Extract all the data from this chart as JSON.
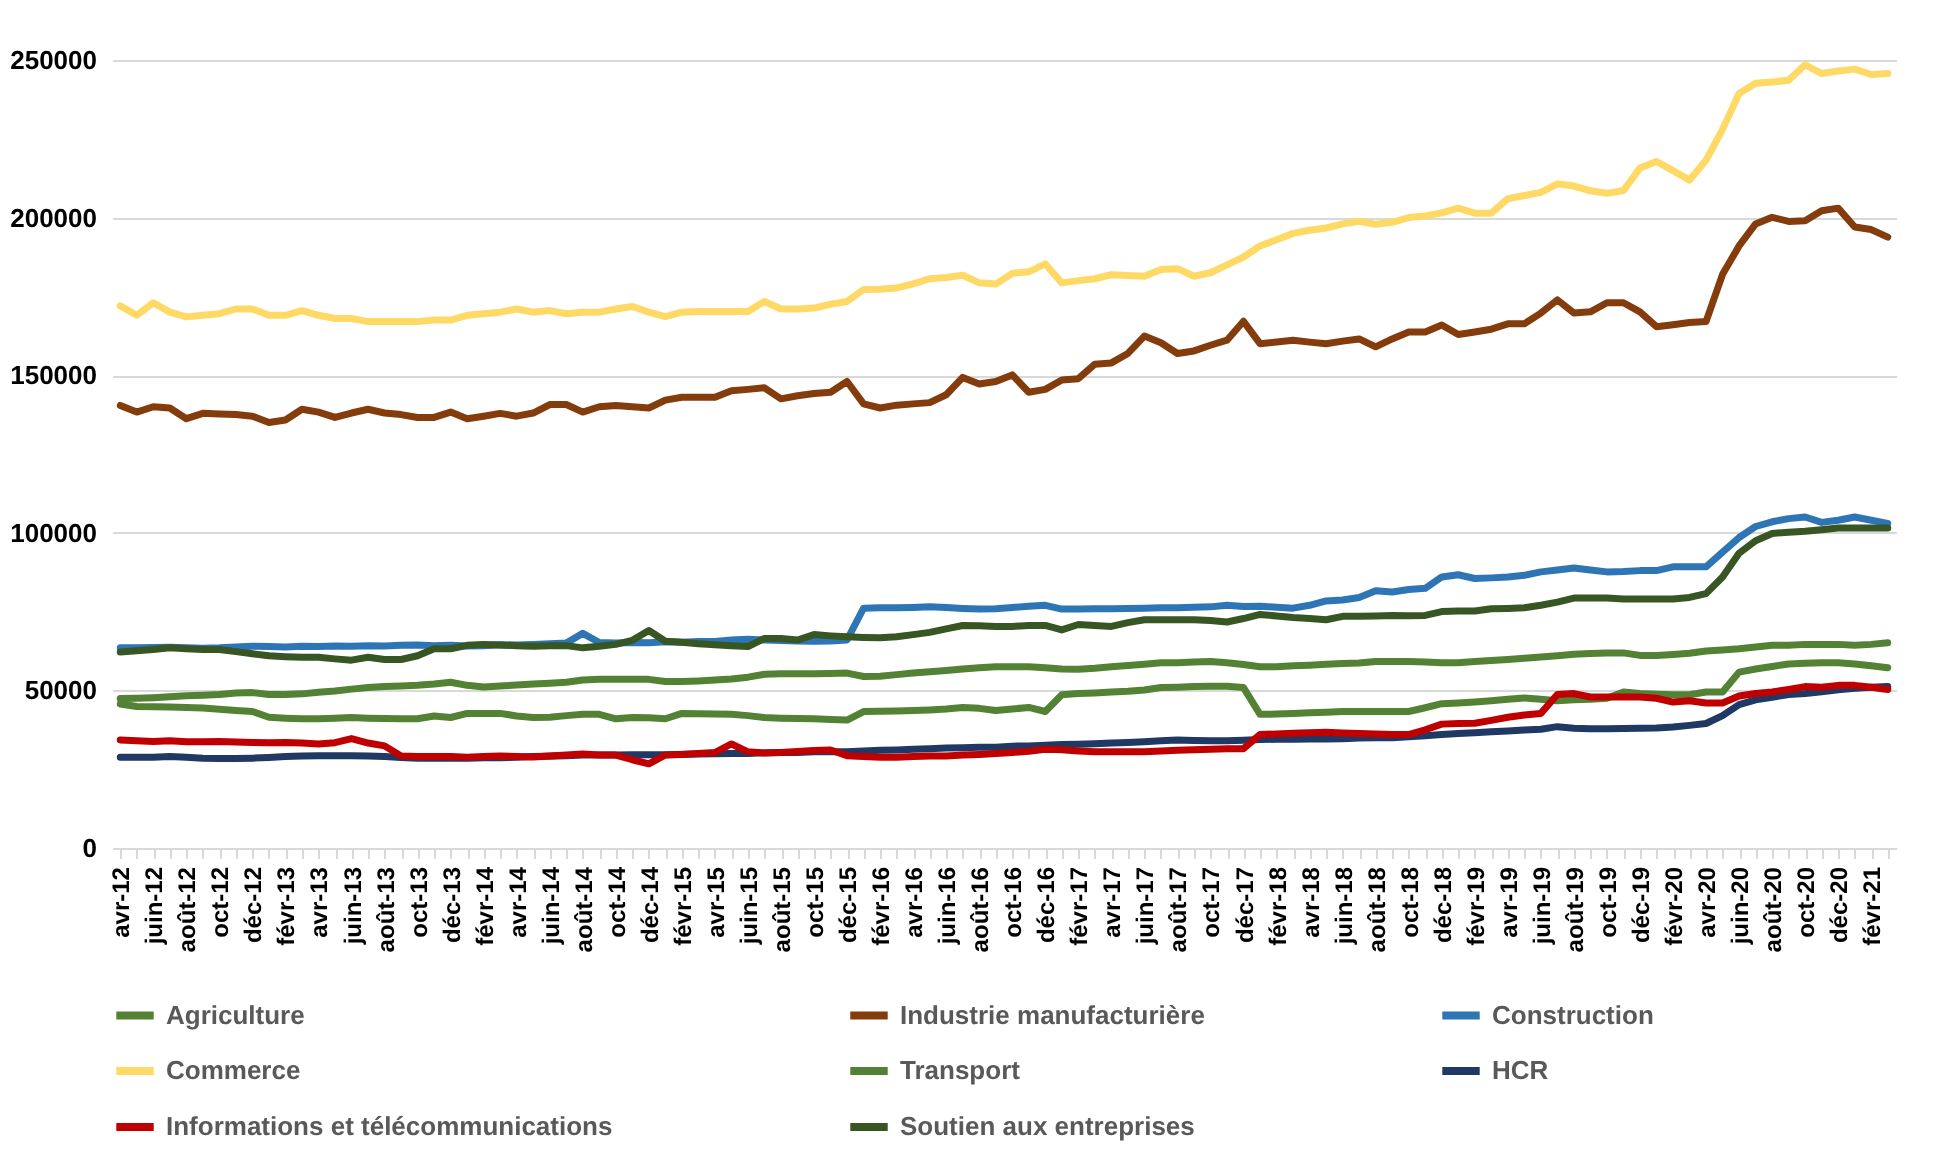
{
  "chart_data": {
    "type": "line",
    "categories": [
      "avr-12",
      null,
      "juin-12",
      null,
      "août-12",
      null,
      "oct-12",
      null,
      "déc-12",
      null,
      "févr-13",
      null,
      "avr-13",
      null,
      "juin-13",
      null,
      "août-13",
      null,
      "oct-13",
      null,
      "déc-13",
      null,
      "févr-14",
      null,
      "avr-14",
      null,
      "juin-14",
      null,
      "août-14",
      null,
      "oct-14",
      null,
      "déc-14",
      null,
      "févr-15",
      null,
      "avr-15",
      null,
      "juin-15",
      null,
      "août-15",
      null,
      "oct-15",
      null,
      "déc-15",
      null,
      "févr-16",
      null,
      "avr-16",
      null,
      "juin-16",
      null,
      "août-16",
      null,
      "oct-16",
      null,
      "déc-16",
      null,
      "févr-17",
      null,
      "avr-17",
      null,
      "juin-17",
      null,
      "août-17",
      null,
      "oct-17",
      null,
      "déc-17",
      null,
      "févr-18",
      null,
      "avr-18",
      null,
      "juin-18",
      null,
      "août-18",
      null,
      "oct-18",
      null,
      "déc-18",
      null,
      "févr-19",
      null,
      "avr-19",
      null,
      "juin-19",
      null,
      "août-19",
      null,
      "oct-19",
      null,
      "déc-19",
      null,
      "févr-20",
      null,
      "avr-20",
      null,
      "juin-20",
      null,
      "août-20",
      null,
      "oct-20",
      null,
      "déc-20",
      null,
      "févr-21",
      null
    ],
    "ylim": [
      0,
      250000
    ],
    "yticks": [
      0,
      50000,
      100000,
      150000,
      200000,
      250000
    ],
    "grid": "y",
    "legend": "bottom",
    "series": [
      {
        "name": "Agriculture",
        "color": "#548235",
        "values": [
          47400,
          47500,
          47700,
          48000,
          48300,
          48500,
          48700,
          49200,
          49300,
          48700,
          48700,
          48900,
          49400,
          49800,
          50400,
          50900,
          51200,
          51400,
          51600,
          52000,
          52600,
          51600,
          51100,
          51400,
          51700,
          52000,
          52300,
          52600,
          53300,
          53500,
          53500,
          53500,
          53500,
          52800,
          52800,
          53000,
          53300,
          53600,
          54200,
          55100,
          55300,
          55300,
          55300,
          55400,
          55500,
          54400,
          54500,
          55000,
          55500,
          55900,
          56300,
          56800,
          57200,
          57500,
          57500,
          57500,
          57200,
          56800,
          56700,
          57000,
          57500,
          57900,
          58300,
          58800,
          58800,
          59000,
          59200,
          58800,
          58200,
          57500,
          57500,
          57800,
          58000,
          58300,
          58500,
          58700,
          59200,
          59200,
          59200,
          59000,
          58800,
          58800,
          59200,
          59500,
          59800,
          60200,
          60600,
          61000,
          61500,
          61700,
          61900,
          61900,
          61100,
          61100,
          61400,
          61800,
          62500,
          62800,
          63200,
          63800,
          64300,
          64300,
          64600,
          64600,
          64600,
          64300,
          64600,
          65100
        ]
      },
      {
        "name": "Industrie manufacturière",
        "color": "#843c0c",
        "values": [
          140400,
          138300,
          140000,
          139600,
          136200,
          137900,
          137700,
          137500,
          137000,
          135000,
          135800,
          139200,
          138300,
          136600,
          138000,
          139200,
          138000,
          137500,
          136600,
          136600,
          138300,
          136200,
          137000,
          137900,
          137000,
          138000,
          140700,
          140700,
          138300,
          140000,
          140400,
          140000,
          139600,
          142100,
          143000,
          143000,
          143000,
          145100,
          145500,
          146000,
          142500,
          143500,
          144200,
          144600,
          148000,
          140900,
          139600,
          140500,
          140900,
          141300,
          143800,
          149300,
          147200,
          148000,
          150100,
          144600,
          145500,
          148500,
          148900,
          153500,
          153900,
          156900,
          162400,
          160300,
          156900,
          157700,
          159500,
          161100,
          167100,
          160000,
          160500,
          161100,
          160500,
          160000,
          160800,
          161500,
          159000,
          161500,
          163700,
          163700,
          165900,
          162900,
          163700,
          164600,
          166300,
          166300,
          169700,
          173900,
          169700,
          170100,
          173000,
          173000,
          170100,
          165400,
          166000,
          166700,
          167000,
          182000,
          191000,
          198000,
          200100,
          198800,
          199000,
          202200,
          203000,
          197000,
          196200,
          193800
        ]
      },
      {
        "name": "Construction",
        "color": "#2e75b6",
        "values": [
          63500,
          63500,
          63600,
          63700,
          63500,
          63400,
          63500,
          63800,
          64000,
          63900,
          63800,
          64000,
          63900,
          64100,
          64000,
          64200,
          64100,
          64300,
          64400,
          64200,
          64300,
          64100,
          64200,
          64500,
          64400,
          64600,
          64800,
          65000,
          68100,
          65200,
          65000,
          65200,
          65100,
          65400,
          65300,
          65500,
          65500,
          66000,
          66200,
          66000,
          65800,
          65700,
          65600,
          65700,
          66000,
          76100,
          76200,
          76200,
          76300,
          76500,
          76300,
          76000,
          75800,
          75900,
          76300,
          76700,
          77000,
          75800,
          75800,
          75900,
          75900,
          76000,
          76100,
          76200,
          76200,
          76400,
          76500,
          77000,
          76600,
          76700,
          76400,
          76100,
          77000,
          78400,
          78700,
          79500,
          81600,
          81200,
          82000,
          82400,
          86000,
          86700,
          85500,
          85700,
          86000,
          86500,
          87600,
          88200,
          88800,
          88200,
          87600,
          87700,
          88000,
          88000,
          89200,
          89200,
          89200,
          93900,
          98500,
          102000,
          103500,
          104500,
          105000,
          103300,
          104000,
          105000,
          104000,
          103000
        ]
      },
      {
        "name": "Commerce",
        "color": "#ffd966",
        "values": [
          172000,
          169000,
          173000,
          170000,
          168500,
          169000,
          169500,
          171000,
          171000,
          169000,
          169000,
          170500,
          169000,
          168000,
          168000,
          167000,
          167000,
          167000,
          167000,
          167500,
          167500,
          169000,
          169500,
          170000,
          171000,
          170000,
          170500,
          169500,
          170000,
          170000,
          171000,
          171800,
          170000,
          168600,
          170000,
          170200,
          170200,
          170200,
          170200,
          173400,
          171000,
          171000,
          171300,
          172500,
          173400,
          177200,
          177300,
          177700,
          179000,
          180600,
          181000,
          181700,
          179300,
          178900,
          182300,
          182800,
          185300,
          179300,
          180000,
          180600,
          181900,
          181600,
          181400,
          183500,
          183800,
          181400,
          182500,
          185000,
          187500,
          191000,
          193000,
          195000,
          196000,
          196700,
          198000,
          198800,
          197900,
          198500,
          200000,
          200500,
          201500,
          203000,
          201400,
          201400,
          206000,
          207000,
          208000,
          210700,
          210000,
          208500,
          207700,
          208600,
          215700,
          217800,
          214900,
          211900,
          218200,
          228000,
          239400,
          242600,
          243000,
          243600,
          248500,
          245700,
          246500,
          247100,
          245400,
          245700
        ]
      },
      {
        "name": "Transport",
        "color": "#548235",
        "values": [
          45700,
          44900,
          44800,
          44700,
          44600,
          44400,
          44000,
          43600,
          43300,
          41500,
          41200,
          41000,
          41000,
          41200,
          41400,
          41200,
          41100,
          41000,
          41000,
          41900,
          41400,
          42700,
          42700,
          42700,
          41900,
          41400,
          41500,
          42000,
          42400,
          42400,
          41000,
          41400,
          41300,
          41000,
          42700,
          42600,
          42500,
          42400,
          42000,
          41400,
          41200,
          41100,
          41000,
          40800,
          40600,
          43300,
          43400,
          43500,
          43600,
          43800,
          44100,
          44600,
          44300,
          43600,
          44100,
          44600,
          43300,
          48600,
          49000,
          49200,
          49500,
          49700,
          50100,
          50900,
          51000,
          51200,
          51300,
          51300,
          50900,
          42400,
          42500,
          42700,
          42900,
          43100,
          43300,
          43300,
          43300,
          43300,
          43300,
          44500,
          45800,
          46000,
          46300,
          46700,
          47200,
          47600,
          47200,
          46700,
          47000,
          47200,
          47500,
          49500,
          49000,
          48800,
          48600,
          48600,
          49500,
          49500,
          55800,
          56800,
          57600,
          58400,
          58600,
          58800,
          58800,
          58400,
          57800,
          57200
        ]
      },
      {
        "name": "HCR",
        "color": "#203864",
        "values": [
          28800,
          28800,
          28800,
          29000,
          28800,
          28500,
          28400,
          28400,
          28500,
          28700,
          29000,
          29200,
          29300,
          29300,
          29300,
          29200,
          29000,
          28700,
          28500,
          28500,
          28500,
          28500,
          28600,
          28600,
          28800,
          29000,
          null,
          29300,
          29500,
          29500,
          29500,
          29600,
          29600,
          29600,
          null,
          29800,
          29900,
          30000,
          30000,
          30200,
          30300,
          30300,
          30500,
          30500,
          30500,
          30800,
          31000,
          31100,
          31300,
          31500,
          31700,
          31800,
          32000,
          32000,
          32300,
          32400,
          32600,
          32800,
          32900,
          33100,
          33300,
          33500,
          33700,
          34000,
          34300,
          34100,
          34000,
          34000,
          34200,
          34400,
          34500,
          34500,
          34600,
          34600,
          34700,
          34900,
          35000,
          35000,
          35300,
          35600,
          36000,
          36300,
          36600,
          36900,
          37100,
          37400,
          37700,
          38500,
          38000,
          37800,
          37800,
          37900,
          38000,
          38100,
          38400,
          38900,
          39500,
          42000,
          45500,
          47000,
          47800,
          48700,
          49000,
          49600,
          50200,
          50700,
          51000,
          51200
        ]
      },
      {
        "name": "Informations et télécommunications",
        "color": "#c00000",
        "values": [
          34300,
          34000,
          33800,
          34000,
          33700,
          33700,
          33800,
          33600,
          33500,
          33400,
          33500,
          33300,
          33000,
          33400,
          34700,
          33300,
          32400,
          29200,
          29000,
          29000,
          29000,
          28800,
          29000,
          29200,
          29000,
          28900,
          29200,
          29500,
          29800,
          29500,
          29500,
          28000,
          26700,
          29500,
          29700,
          30000,
          30300,
          33000,
          30500,
          30100,
          30300,
          30600,
          30900,
          31100,
          29300,
          29000,
          28800,
          28800,
          29000,
          29200,
          29200,
          29500,
          29700,
          30000,
          30300,
          30700,
          31300,
          31200,
          30800,
          30500,
          30500,
          30500,
          30500,
          30800,
          31000,
          31200,
          31300,
          31500,
          31500,
          36000,
          36200,
          36400,
          36600,
          36700,
          36500,
          36300,
          36200,
          36000,
          36000,
          37500,
          39300,
          39500,
          39600,
          40500,
          41500,
          42200,
          42700,
          48700,
          49000,
          47900,
          47900,
          47900,
          47900,
          47500,
          46300,
          46700,
          46000,
          46000,
          48200,
          49000,
          49500,
          50300,
          51200,
          51000,
          51600,
          51600,
          51000,
          50300
        ]
      },
      {
        "name": "Soutien aux entreprises",
        "color": "#375623",
        "values": [
          62200,
          62600,
          63000,
          63500,
          63200,
          63000,
          63000,
          62300,
          61600,
          61000,
          60700,
          60500,
          60500,
          60000,
          59600,
          60500,
          59800,
          59800,
          61000,
          63200,
          63200,
          64300,
          64600,
          64400,
          64200,
          64000,
          64200,
          64200,
          63500,
          64000,
          64600,
          65900,
          69000,
          65600,
          65300,
          64800,
          64500,
          64200,
          63900,
          66500,
          66500,
          66000,
          67700,
          67300,
          67000,
          66800,
          66700,
          67000,
          67700,
          68400,
          69500,
          70600,
          70500,
          70300,
          70300,
          70600,
          70600,
          69200,
          70900,
          70600,
          70300,
          71500,
          72400,
          72400,
          72400,
          72400,
          72200,
          71700,
          72800,
          74100,
          73600,
          73100,
          72800,
          72400,
          73500,
          73500,
          73600,
          73800,
          73700,
          73800,
          75000,
          75200,
          75200,
          75900,
          76000,
          76200,
          77000,
          78000,
          79300,
          79300,
          79300,
          79000,
          79000,
          79000,
          79000,
          79500,
          80700,
          86000,
          93500,
          97500,
          99800,
          100200,
          100500,
          101000,
          101500,
          101500,
          101500,
          101500
        ]
      }
    ]
  }
}
